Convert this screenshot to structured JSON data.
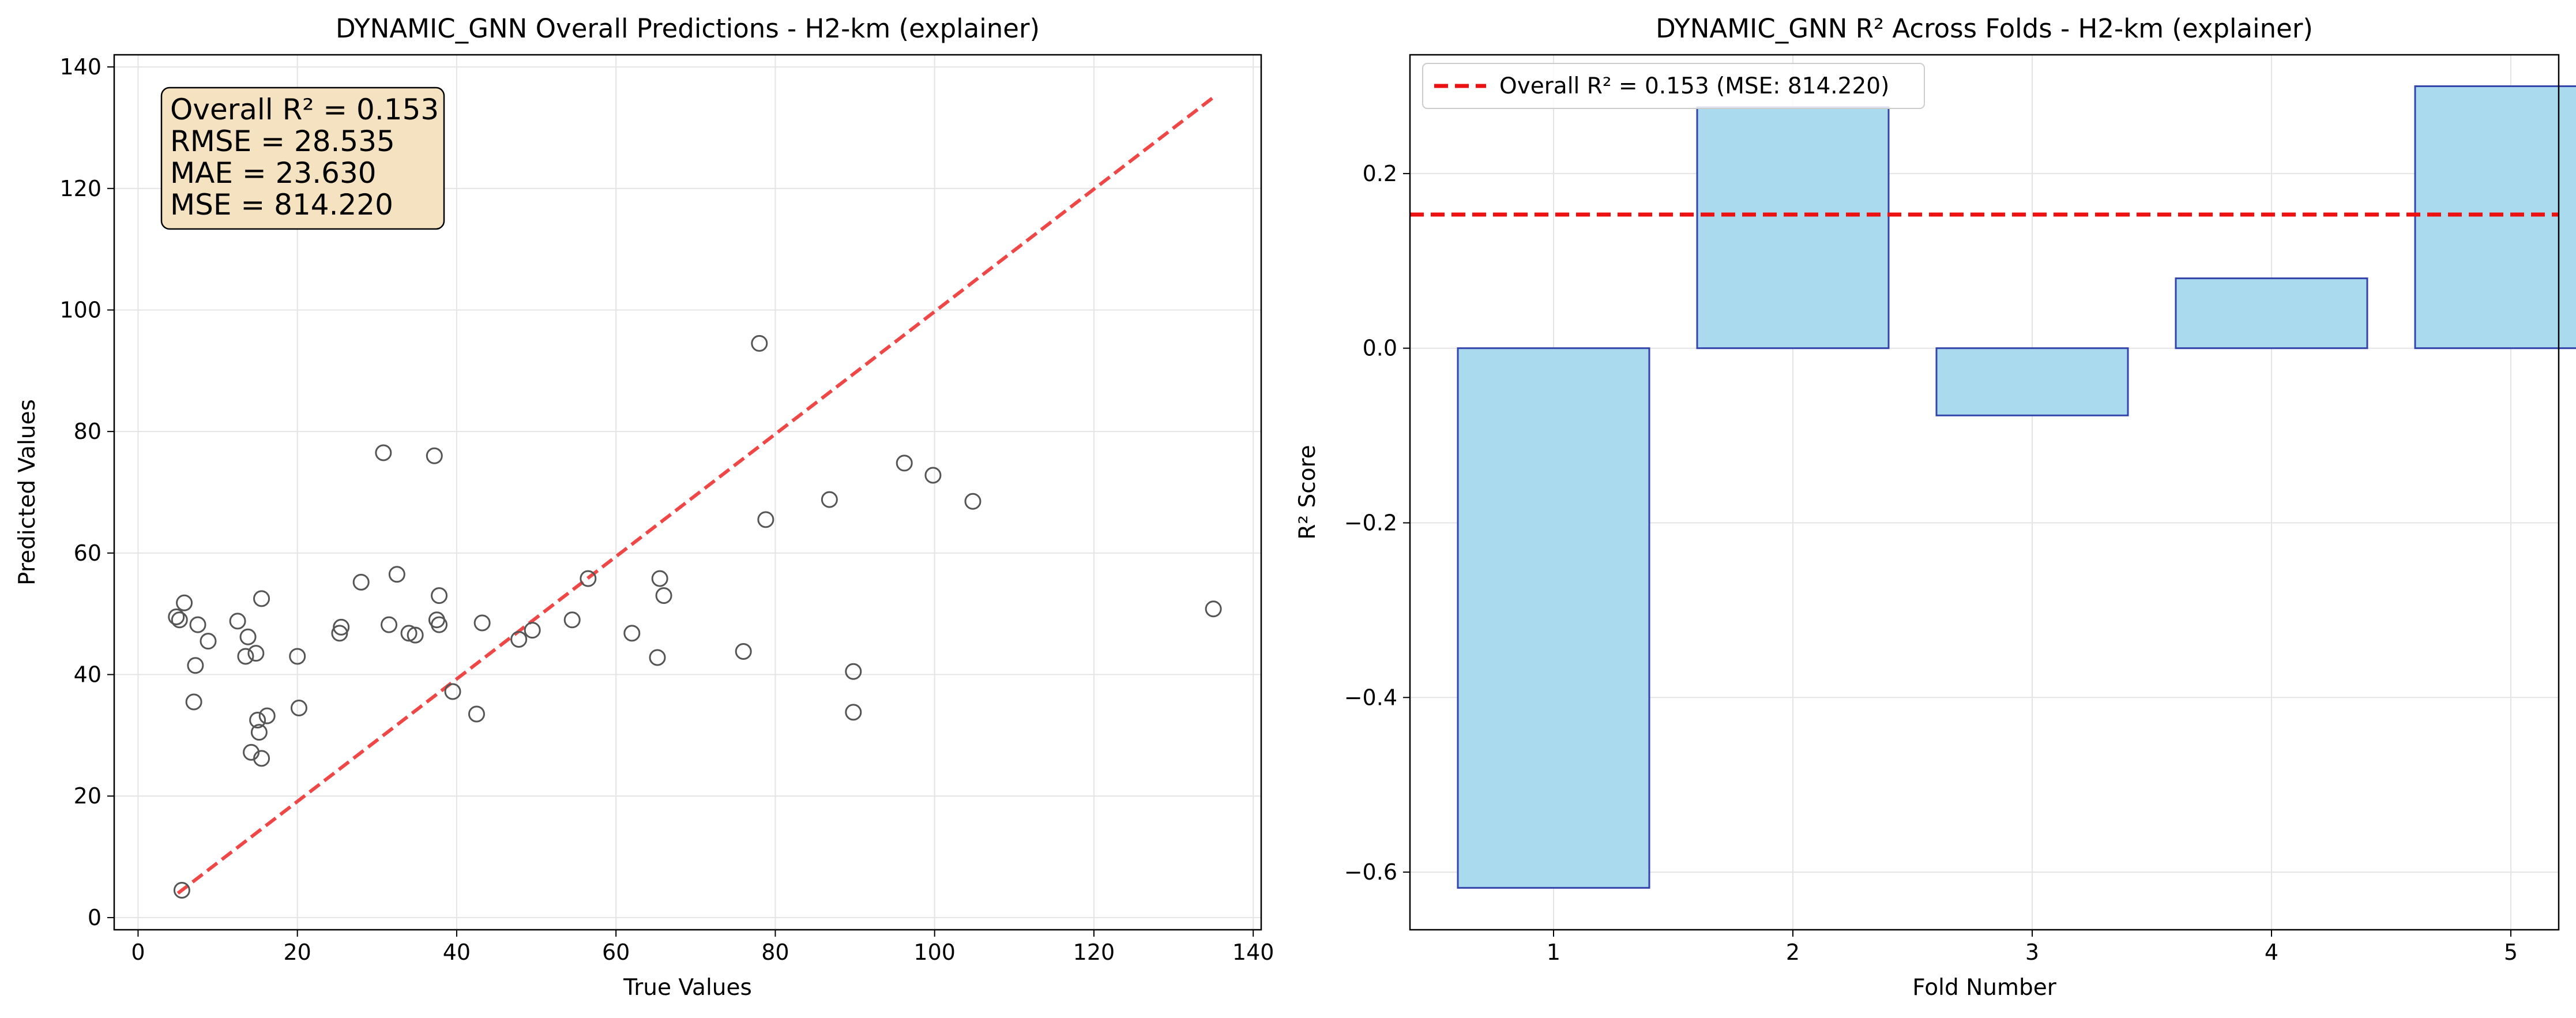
{
  "chart_data": [
    {
      "type": "scatter",
      "title": "DYNAMIC_GNN Overall Predictions - H2-km (explainer)",
      "xlabel": "True Values",
      "ylabel": "Predicted Values",
      "xlim": [
        -3,
        141
      ],
      "ylim": [
        -2,
        142
      ],
      "xticks": [
        0,
        20,
        40,
        60,
        80,
        100,
        120,
        140
      ],
      "yticks": [
        0,
        20,
        40,
        60,
        80,
        100,
        120,
        140
      ],
      "grid": true,
      "reference_line": {
        "x": [
          5,
          135
        ],
        "y": [
          4,
          135
        ],
        "color": "#ee3333",
        "style": "dashed"
      },
      "stats_box": {
        "lines": [
          "Overall R² = 0.153",
          "RMSE = 28.535",
          "MAE = 23.630",
          "MSE = 814.220"
        ],
        "placement": "top-left",
        "fill": "#f5e2c0"
      },
      "marker_color": "#555555",
      "points": [
        [
          5.5,
          4.5
        ],
        [
          4.8,
          49.5
        ],
        [
          5.2,
          49.0
        ],
        [
          5.8,
          51.8
        ],
        [
          7.0,
          35.5
        ],
        [
          7.2,
          41.5
        ],
        [
          7.5,
          48.2
        ],
        [
          8.8,
          45.5
        ],
        [
          12.5,
          48.8
        ],
        [
          13.5,
          43.0
        ],
        [
          13.8,
          46.2
        ],
        [
          14.2,
          27.2
        ],
        [
          14.8,
          43.5
        ],
        [
          15.0,
          32.5
        ],
        [
          15.2,
          30.5
        ],
        [
          15.5,
          52.5
        ],
        [
          15.5,
          26.2
        ],
        [
          16.2,
          33.2
        ],
        [
          20.0,
          43.0
        ],
        [
          20.2,
          34.5
        ],
        [
          25.3,
          46.8
        ],
        [
          25.5,
          47.8
        ],
        [
          28.0,
          55.2
        ],
        [
          30.8,
          76.5
        ],
        [
          31.5,
          48.2
        ],
        [
          32.5,
          56.5
        ],
        [
          34.0,
          46.8
        ],
        [
          34.8,
          46.5
        ],
        [
          37.2,
          76.0
        ],
        [
          37.5,
          49.0
        ],
        [
          37.8,
          53.0
        ],
        [
          37.8,
          48.2
        ],
        [
          39.5,
          37.2
        ],
        [
          42.5,
          33.5
        ],
        [
          43.2,
          48.5
        ],
        [
          47.8,
          45.8
        ],
        [
          49.5,
          47.3
        ],
        [
          54.5,
          49.0
        ],
        [
          56.5,
          55.8
        ],
        [
          62.0,
          46.8
        ],
        [
          65.2,
          42.8
        ],
        [
          65.5,
          55.8
        ],
        [
          66.0,
          53.0
        ],
        [
          76.0,
          43.8
        ],
        [
          78.0,
          94.5
        ],
        [
          78.8,
          65.5
        ],
        [
          86.8,
          68.8
        ],
        [
          89.8,
          40.5
        ],
        [
          89.8,
          33.8
        ],
        [
          96.2,
          74.8
        ],
        [
          99.8,
          72.8
        ],
        [
          104.8,
          68.5
        ],
        [
          135.0,
          50.8
        ]
      ]
    },
    {
      "type": "bar",
      "title": "DYNAMIC_GNN R² Across Folds - H2-km (explainer)",
      "xlabel": "Fold Number",
      "ylabel": "R² Score",
      "categories": [
        "1",
        "2",
        "3",
        "4",
        "5"
      ],
      "values": [
        -0.618,
        0.276,
        -0.077,
        0.08,
        0.3
      ],
      "ylim": [
        -0.666,
        0.336
      ],
      "yticks": [
        -0.6,
        -0.4,
        -0.2,
        0.0,
        0.2
      ],
      "ytick_labels": [
        "−0.6",
        "−0.4",
        "−0.2",
        "0.0",
        "0.2"
      ],
      "grid": true,
      "bar_fill": "#aadaee",
      "bar_edge": "#3344aa",
      "reference_line": {
        "y": 0.153,
        "color": "#ee1111",
        "style": "dashed"
      },
      "legend": {
        "entries": [
          "Overall R² = 0.153 (MSE: 814.220)"
        ],
        "placement": "top-left"
      }
    }
  ]
}
